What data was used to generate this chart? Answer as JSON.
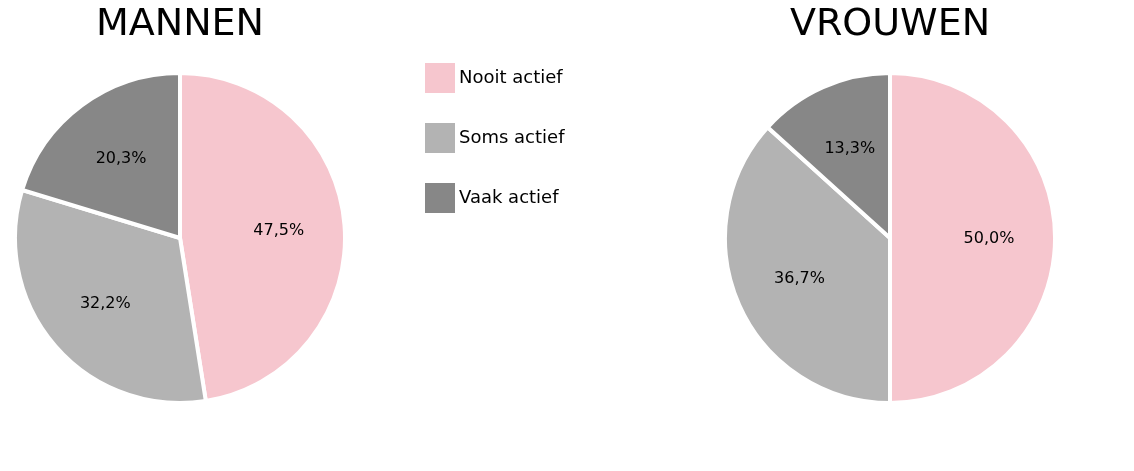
{
  "chart_data": {
    "type": "pie",
    "categories": [
      "Nooit actief",
      "Soms actief",
      "Vaak actief"
    ],
    "colors": [
      "#f6c6ce",
      "#b3b3b3",
      "#878787"
    ],
    "legend": "right",
    "series": [
      {
        "name": "MANNEN",
        "values": [
          47.5,
          32.2,
          20.3
        ],
        "value_labels": [
          "47,5%",
          "32,2%",
          "20,3%"
        ]
      },
      {
        "name": "VROUWEN",
        "values": [
          50.0,
          36.7,
          13.3
        ],
        "value_labels": [
          "50,0%",
          "36,7%",
          "13,3%"
        ]
      }
    ]
  }
}
